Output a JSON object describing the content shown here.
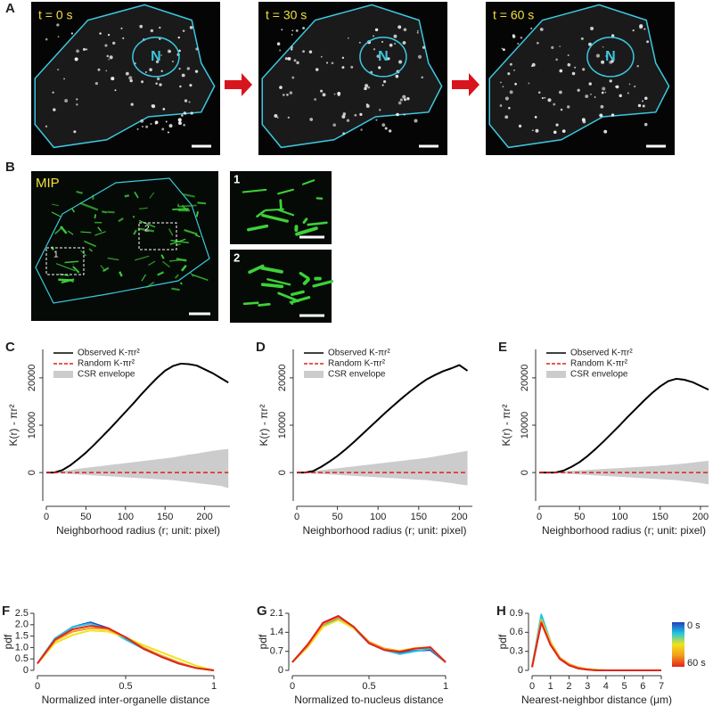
{
  "figure": {
    "A": {
      "panel": "A",
      "frames": [
        {
          "time": "t = 0 s",
          "nucleus": "N"
        },
        {
          "time": "t = 30 s",
          "nucleus": "N"
        },
        {
          "time": "t = 60 s",
          "nucleus": "N"
        }
      ]
    },
    "B": {
      "panel": "B",
      "label": "MIP",
      "regions": [
        "1",
        "2"
      ],
      "insets": [
        "1",
        "2"
      ]
    }
  },
  "chart_data": [
    {
      "panel": "C",
      "type": "line",
      "xlabel": "Neighborhood radius (r; unit: pixel)",
      "ylabel": "K(r) - πr²",
      "legend": "upper left",
      "x": [
        0,
        10,
        20,
        30,
        40,
        50,
        60,
        70,
        80,
        90,
        100,
        110,
        120,
        130,
        140,
        150,
        160,
        170,
        180,
        190,
        200,
        210,
        220,
        230
      ],
      "xlim": [
        0,
        232
      ],
      "xticks": [
        0,
        50,
        100,
        150,
        200
      ],
      "ylim": [
        -6000,
        26000
      ],
      "yticks": [
        0,
        10000,
        20000
      ],
      "series": [
        {
          "name": "Observed K-πr²",
          "color": "#000000",
          "style": "solid",
          "values": [
            0,
            0,
            500,
            1500,
            2800,
            4200,
            5800,
            7500,
            9200,
            11000,
            12800,
            14600,
            16500,
            18300,
            20000,
            21500,
            22500,
            23000,
            22900,
            22600,
            21800,
            21000,
            20000,
            19000
          ]
        },
        {
          "name": "Random K-πr²",
          "color": "#e0201b",
          "style": "dashed",
          "values": [
            0,
            0,
            0,
            0,
            0,
            0,
            0,
            0,
            0,
            0,
            0,
            0,
            0,
            0,
            0,
            0,
            0,
            0,
            0,
            0,
            0,
            0,
            0,
            0
          ]
        },
        {
          "name": "CSR envelope",
          "color": "#cccccc",
          "style": "band",
          "values": [
            0,
            100,
            300,
            500,
            800,
            1000,
            1200,
            1400,
            1600,
            1800,
            2000,
            2200,
            2400,
            2600,
            2800,
            3000,
            3200,
            3500,
            3800,
            4000,
            4300,
            4600,
            4800,
            5000
          ],
          "lower": [
            0,
            -100,
            -200,
            -300,
            -400,
            -500,
            -600,
            -700,
            -800,
            -900,
            -1000,
            -1100,
            -1200,
            -1300,
            -1400,
            -1500,
            -1600,
            -1800,
            -2000,
            -2200,
            -2400,
            -2600,
            -2800,
            -3300
          ]
        }
      ]
    },
    {
      "panel": "D",
      "type": "line",
      "xlabel": "Neighborhood radius (r; unit: pixel)",
      "ylabel": "K(r) - πr²",
      "legend": "upper left",
      "x": [
        0,
        10,
        20,
        30,
        40,
        50,
        60,
        70,
        80,
        90,
        100,
        110,
        120,
        130,
        140,
        150,
        160,
        170,
        180,
        190,
        200,
        210
      ],
      "xlim": [
        0,
        216
      ],
      "xticks": [
        0,
        50,
        100,
        150,
        200
      ],
      "ylim": [
        -6000,
        26000
      ],
      "yticks": [
        0,
        10000,
        20000
      ],
      "series": [
        {
          "name": "Observed K-πr²",
          "color": "#000000",
          "style": "solid",
          "values": [
            0,
            0,
            300,
            1200,
            2300,
            3500,
            4900,
            6400,
            8000,
            9600,
            11200,
            12800,
            14300,
            15800,
            17200,
            18500,
            19700,
            20600,
            21400,
            22000,
            22700,
            21500
          ]
        },
        {
          "name": "Random K-πr²",
          "color": "#e0201b",
          "style": "dashed",
          "values": [
            0,
            0,
            0,
            0,
            0,
            0,
            0,
            0,
            0,
            0,
            0,
            0,
            0,
            0,
            0,
            0,
            0,
            0,
            0,
            0,
            0,
            0
          ]
        },
        {
          "name": "CSR envelope",
          "color": "#cccccc",
          "style": "band",
          "values": [
            0,
            100,
            300,
            500,
            700,
            900,
            1100,
            1300,
            1500,
            1700,
            1900,
            2100,
            2300,
            2500,
            2700,
            2900,
            3100,
            3400,
            3700,
            4000,
            4300,
            4600
          ],
          "lower": [
            0,
            -100,
            -200,
            -300,
            -400,
            -500,
            -600,
            -700,
            -800,
            -900,
            -1000,
            -1100,
            -1200,
            -1300,
            -1400,
            -1500,
            -1600,
            -1800,
            -2000,
            -2200,
            -2500,
            -2700
          ]
        }
      ]
    },
    {
      "panel": "E",
      "type": "line",
      "xlabel": "Neighborhood radius (r; unit: pixel)",
      "ylabel": "K(r) - πr²",
      "legend": "upper left",
      "x": [
        0,
        10,
        20,
        30,
        40,
        50,
        60,
        70,
        80,
        90,
        100,
        110,
        120,
        130,
        140,
        150,
        160,
        170,
        180,
        190,
        200,
        210
      ],
      "xlim": [
        0,
        210
      ],
      "xticks": [
        0,
        50,
        100,
        150,
        200
      ],
      "ylim": [
        -6000,
        26000
      ],
      "yticks": [
        0,
        10000,
        20000
      ],
      "series": [
        {
          "name": "Observed K-πr²",
          "color": "#000000",
          "style": "solid",
          "values": [
            0,
            0,
            0,
            400,
            1200,
            2200,
            3500,
            5000,
            6600,
            8300,
            10000,
            11800,
            13500,
            15200,
            16800,
            18200,
            19300,
            19800,
            19600,
            19100,
            18300,
            17500
          ]
        },
        {
          "name": "Random K-πr²",
          "color": "#e0201b",
          "style": "dashed",
          "values": [
            0,
            0,
            0,
            0,
            0,
            0,
            0,
            0,
            0,
            0,
            0,
            0,
            0,
            0,
            0,
            0,
            0,
            0,
            0,
            0,
            0,
            0
          ]
        },
        {
          "name": "CSR envelope",
          "color": "#cccccc",
          "style": "band",
          "values": [
            0,
            50,
            150,
            250,
            350,
            450,
            550,
            650,
            750,
            850,
            950,
            1050,
            1150,
            1250,
            1350,
            1450,
            1600,
            1750,
            1900,
            2100,
            2300,
            2500
          ],
          "lower": [
            0,
            -50,
            -100,
            -200,
            -300,
            -400,
            -500,
            -600,
            -700,
            -800,
            -900,
            -1000,
            -1100,
            -1200,
            -1300,
            -1400,
            -1500,
            -1600,
            -1800,
            -2000,
            -2200,
            -2500
          ]
        }
      ]
    },
    {
      "panel": "F",
      "type": "line",
      "xlabel": "Normalized inter-organelle distance",
      "ylabel": "pdf",
      "x": [
        0,
        0.1,
        0.2,
        0.3,
        0.4,
        0.5,
        0.6,
        0.7,
        0.8,
        0.9,
        1
      ],
      "xlim": [
        0,
        1
      ],
      "xticks": [
        0,
        0.5,
        1
      ],
      "ylim": [
        0,
        2.5
      ],
      "yticks": [
        0,
        0.5,
        {
          "value": 1,
          "label": "1.0"
        },
        1.5,
        {
          "value": 2,
          "label": "2.0"
        },
        2.5
      ],
      "series": [
        {
          "color": "#1f3fbf",
          "values": [
            0.3,
            1.4,
            1.9,
            2.1,
            1.85,
            1.4,
            0.95,
            0.6,
            0.3,
            0.1,
            0
          ]
        },
        {
          "color": "#22c7e0",
          "values": [
            0.3,
            1.4,
            1.9,
            2.05,
            1.8,
            1.35,
            0.95,
            0.6,
            0.3,
            0.1,
            0
          ]
        },
        {
          "color": "#f2e21b",
          "values": [
            0.3,
            1.2,
            1.55,
            1.75,
            1.7,
            1.45,
            1.1,
            0.8,
            0.5,
            0.2,
            0
          ]
        },
        {
          "color": "#f39a1e",
          "values": [
            0.3,
            1.3,
            1.7,
            1.85,
            1.8,
            1.45,
            1.0,
            0.65,
            0.35,
            0.1,
            0
          ]
        },
        {
          "color": "#e3221c",
          "values": [
            0.3,
            1.35,
            1.8,
            1.95,
            1.85,
            1.45,
            0.95,
            0.6,
            0.3,
            0.1,
            0
          ]
        }
      ]
    },
    {
      "panel": "G",
      "type": "line",
      "xlabel": "Normalized to-nucleus distance",
      "ylabel": "pdf",
      "x": [
        0,
        0.1,
        0.2,
        0.3,
        0.4,
        0.5,
        0.6,
        0.7,
        0.8,
        0.9,
        1
      ],
      "xlim": [
        0,
        1
      ],
      "xticks": [
        0,
        0.5,
        1
      ],
      "ylim": [
        0,
        2.1
      ],
      "yticks": [
        0,
        0.7,
        1.4,
        2.1
      ],
      "series": [
        {
          "color": "#1f3fbf",
          "values": [
            0.3,
            0.9,
            1.75,
            2.0,
            1.6,
            1.0,
            0.75,
            0.65,
            0.72,
            0.75,
            0.3
          ]
        },
        {
          "color": "#22c7e0",
          "values": [
            0.3,
            0.85,
            1.65,
            1.9,
            1.55,
            1.0,
            0.75,
            0.6,
            0.7,
            0.8,
            0.3
          ]
        },
        {
          "color": "#f2e21b",
          "values": [
            0.3,
            0.85,
            1.6,
            1.85,
            1.55,
            1.05,
            0.8,
            0.72,
            0.82,
            0.85,
            0.3
          ]
        },
        {
          "color": "#f39a1e",
          "values": [
            0.3,
            0.9,
            1.7,
            1.95,
            1.6,
            1.05,
            0.8,
            0.7,
            0.8,
            0.85,
            0.3
          ]
        },
        {
          "color": "#e3221c",
          "values": [
            0.3,
            0.95,
            1.75,
            2.0,
            1.6,
            1.0,
            0.75,
            0.68,
            0.8,
            0.85,
            0.3
          ]
        }
      ]
    },
    {
      "panel": "H",
      "type": "line",
      "xlabel": "Nearest-neighbor distance (μm)",
      "ylabel": "pdf",
      "x": [
        0,
        0.5,
        1,
        1.5,
        2,
        2.5,
        3,
        3.5,
        4,
        4.5,
        5,
        5.5,
        6,
        6.5,
        7
      ],
      "xlim": [
        0,
        7
      ],
      "xticks": [
        0,
        1,
        2,
        3,
        4,
        5,
        6,
        7
      ],
      "ylim": [
        0,
        0.9
      ],
      "yticks": [
        0,
        0.3,
        0.6,
        0.9
      ],
      "colorbar": {
        "labels": [
          "0 s",
          "60 s"
        ],
        "colors": [
          "#1f3fbf",
          "#22c7e0",
          "#f2e21b",
          "#f39a1e",
          "#e3221c"
        ]
      },
      "series": [
        {
          "color": "#1f3fbf",
          "values": [
            0.05,
            0.85,
            0.45,
            0.2,
            0.08,
            0.03,
            0.02,
            0,
            0,
            0,
            0,
            0,
            0,
            0,
            0
          ]
        },
        {
          "color": "#22c7e0",
          "values": [
            0.05,
            0.88,
            0.45,
            0.18,
            0.08,
            0.03,
            0.02,
            0.01,
            0,
            0,
            0,
            0,
            0,
            0,
            0
          ]
        },
        {
          "color": "#f2e21b",
          "values": [
            0.05,
            0.8,
            0.45,
            0.2,
            0.1,
            0.05,
            0.02,
            0.01,
            0,
            0,
            0,
            0,
            0,
            0,
            0
          ]
        },
        {
          "color": "#f39a1e",
          "values": [
            0.05,
            0.78,
            0.42,
            0.2,
            0.1,
            0.04,
            0.02,
            0,
            0,
            0,
            0,
            0,
            0,
            0,
            0
          ]
        },
        {
          "color": "#e3221c",
          "values": [
            0.05,
            0.75,
            0.4,
            0.18,
            0.08,
            0.03,
            0.01,
            0,
            0,
            0,
            0,
            0,
            0,
            0,
            0
          ]
        }
      ]
    }
  ]
}
